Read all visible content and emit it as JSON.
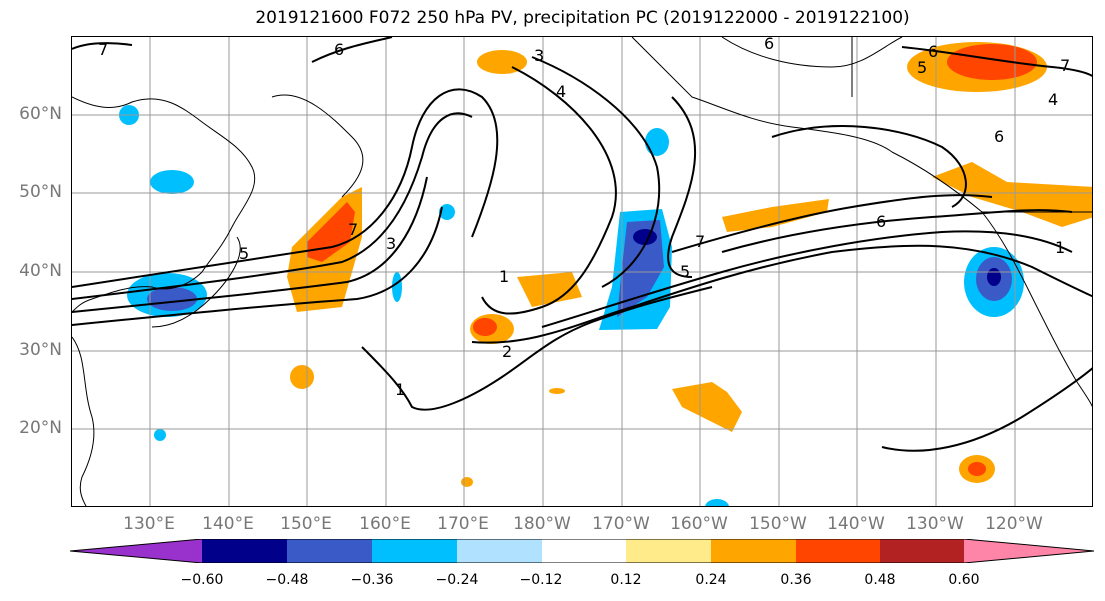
{
  "title": "2019121600 F072 250 hPa PV, precipitation PC (2019122000 - 2019122100)",
  "lat_labels": [
    "60°N",
    "50°N",
    "40°N",
    "30°N",
    "20°N"
  ],
  "lon_labels": [
    "130°E",
    "140°E",
    "150°E",
    "160°E",
    "170°E",
    "180°W",
    "170°W",
    "160°W",
    "150°W",
    "140°W",
    "130°W",
    "120°W"
  ],
  "contour_labels": [
    "7",
    "6",
    "6",
    "6",
    "3",
    "4",
    "5",
    "7",
    "4",
    "1",
    "3",
    "5",
    "1",
    "2",
    "1",
    "7",
    "5",
    "6",
    "7",
    "6"
  ],
  "colorbar": {
    "colors": [
      "#9932cc",
      "#00008b",
      "#3a5bc7",
      "#00bfff",
      "#b0e2ff",
      "#ffffff",
      "#ffeb8a",
      "#ffa500",
      "#ff4500",
      "#b22222",
      "#ff85a8"
    ],
    "tick_labels": [
      "−0.60",
      "−0.48",
      "−0.36",
      "−0.24",
      "−0.12",
      "0.12",
      "0.24",
      "0.36",
      "0.48",
      "0.60"
    ]
  }
}
